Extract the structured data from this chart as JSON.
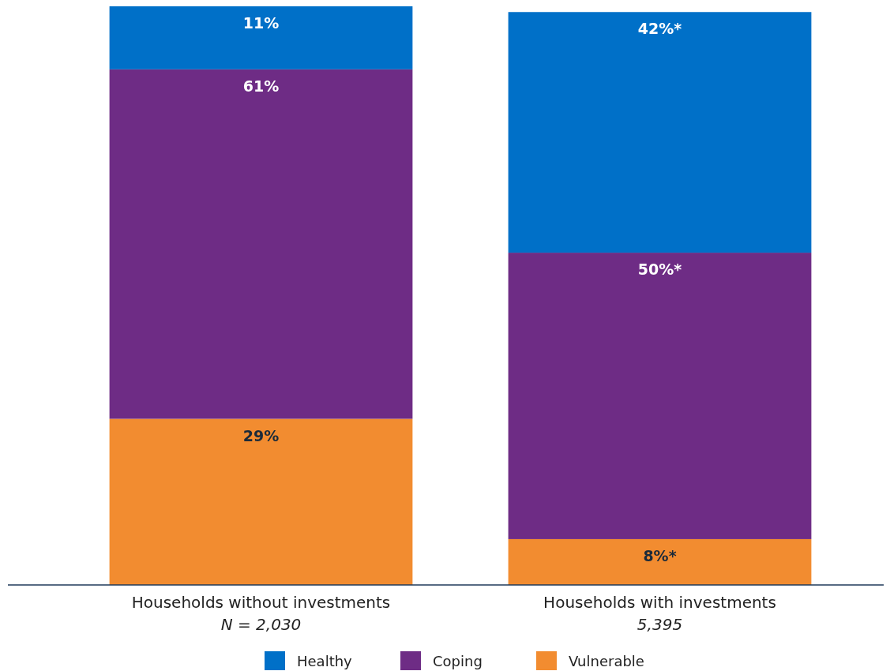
{
  "chart_data": {
    "type": "bar",
    "stacked": true,
    "categories": [
      "Households without investments\nN = 2,030",
      "Households with investments\n5,395"
    ],
    "series": [
      {
        "name": "Vulnerable",
        "color": "#f28c30",
        "values": [
          29,
          8
        ],
        "value_labels": [
          "29%",
          "8%*"
        ]
      },
      {
        "name": "Coping",
        "color": "#6e2c85",
        "values": [
          61,
          50
        ],
        "value_labels": [
          "61%",
          "50%*"
        ]
      },
      {
        "name": "Healthy",
        "color": "#0070c8",
        "values": [
          11,
          42
        ],
        "value_labels": [
          "11%",
          "42%*"
        ]
      }
    ],
    "legend": "bottom"
  }
}
